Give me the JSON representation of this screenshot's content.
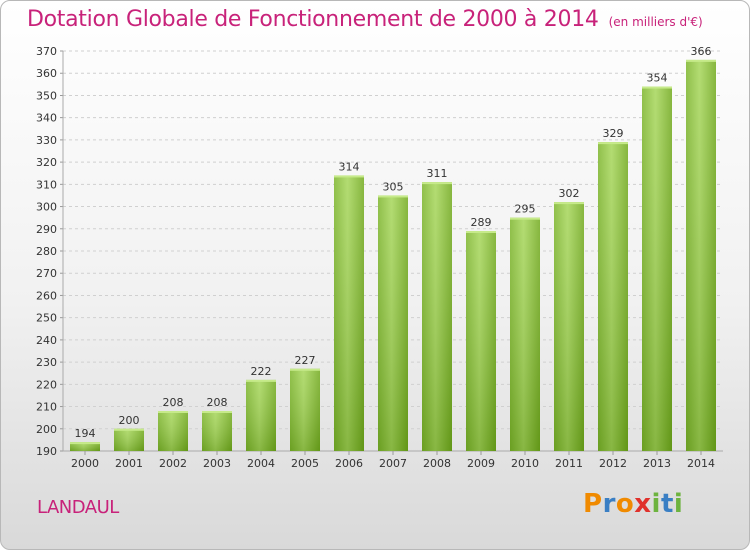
{
  "header": {
    "title": "Dotation Globale de Fonctionnement de 2000 à 2014",
    "subtitle": "(en milliers d'€)"
  },
  "footer": {
    "place": "LANDAUL",
    "logo_text": "Proxiti"
  },
  "colors": {
    "accent": "#c8227a",
    "bar_light": "#9ccf4e",
    "bar_dark": "#69a418",
    "logo": [
      "#f08a00",
      "#3a7fc4",
      "#f08a00",
      "#e0312c",
      "#6db33f",
      "#3a7fc4",
      "#6db33f"
    ]
  },
  "chart_data": {
    "type": "bar",
    "title": "Dotation Globale de Fonctionnement de 2000 à 2014",
    "subtitle": "(en milliers d'€)",
    "xlabel": "",
    "ylabel": "",
    "categories": [
      "2000",
      "2001",
      "2002",
      "2003",
      "2004",
      "2005",
      "2006",
      "2007",
      "2008",
      "2009",
      "2010",
      "2011",
      "2012",
      "2013",
      "2014"
    ],
    "values": [
      194,
      200,
      208,
      208,
      222,
      227,
      314,
      305,
      311,
      289,
      295,
      302,
      329,
      354,
      366
    ],
    "ylim": [
      190,
      370
    ],
    "ytick_step": 10,
    "grid": true,
    "data_labels": true
  }
}
